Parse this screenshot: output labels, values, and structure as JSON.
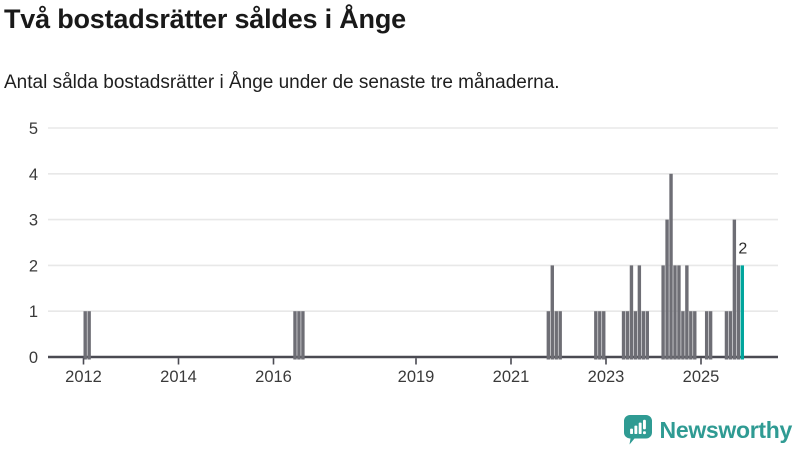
{
  "header": {
    "title": "Två bostadsrätter såldes i Ånge",
    "subtitle": "Antal sålda bostadsrätter i Ånge under de senaste tre månaderna."
  },
  "chart_data": {
    "type": "bar",
    "title": "Två bostadsrätter såldes i Ånge",
    "xlabel": "",
    "ylabel": "",
    "ylim": [
      0,
      5
    ],
    "y_ticks": [
      0,
      1,
      2,
      3,
      4,
      5
    ],
    "x_tick_years": [
      2012,
      2014,
      2016,
      2019,
      2021,
      2023,
      2025
    ],
    "grid": true,
    "legend": "none",
    "colors": {
      "bar": "#6e6e75",
      "highlight": "#00a59c",
      "axis": "#4a4a52",
      "gridline": "#e8e8e8",
      "tick_text": "#3a3a3a",
      "annotation_text": "#2b2b2b"
    },
    "annotation": {
      "text": "2",
      "month": "2025-11"
    },
    "points": [
      {
        "month": "2012-01",
        "value": 1
      },
      {
        "month": "2012-02",
        "value": 1
      },
      {
        "month": "2016-06",
        "value": 1
      },
      {
        "month": "2016-07",
        "value": 1
      },
      {
        "month": "2016-08",
        "value": 1
      },
      {
        "month": "2021-10",
        "value": 1
      },
      {
        "month": "2021-11",
        "value": 2
      },
      {
        "month": "2021-12",
        "value": 1
      },
      {
        "month": "2022-01",
        "value": 1
      },
      {
        "month": "2022-10",
        "value": 1
      },
      {
        "month": "2022-11",
        "value": 1
      },
      {
        "month": "2022-12",
        "value": 1
      },
      {
        "month": "2023-05",
        "value": 1
      },
      {
        "month": "2023-06",
        "value": 1
      },
      {
        "month": "2023-07",
        "value": 2
      },
      {
        "month": "2023-08",
        "value": 1
      },
      {
        "month": "2023-09",
        "value": 2
      },
      {
        "month": "2023-10",
        "value": 1
      },
      {
        "month": "2023-11",
        "value": 1
      },
      {
        "month": "2024-03",
        "value": 2
      },
      {
        "month": "2024-04",
        "value": 3
      },
      {
        "month": "2024-05",
        "value": 4
      },
      {
        "month": "2024-06",
        "value": 2
      },
      {
        "month": "2024-07",
        "value": 2
      },
      {
        "month": "2024-08",
        "value": 1
      },
      {
        "month": "2024-09",
        "value": 2
      },
      {
        "month": "2024-10",
        "value": 1
      },
      {
        "month": "2024-11",
        "value": 1
      },
      {
        "month": "2025-02",
        "value": 1
      },
      {
        "month": "2025-03",
        "value": 1
      },
      {
        "month": "2025-07",
        "value": 1
      },
      {
        "month": "2025-08",
        "value": 1
      },
      {
        "month": "2025-09",
        "value": 3
      },
      {
        "month": "2025-10",
        "value": 2
      },
      {
        "month": "2025-11",
        "value": 2,
        "highlight": true
      }
    ]
  },
  "branding": {
    "name": "Newsworthy",
    "color": "#2f9b93",
    "icon": "newsworthy-chart-bubble-icon"
  }
}
